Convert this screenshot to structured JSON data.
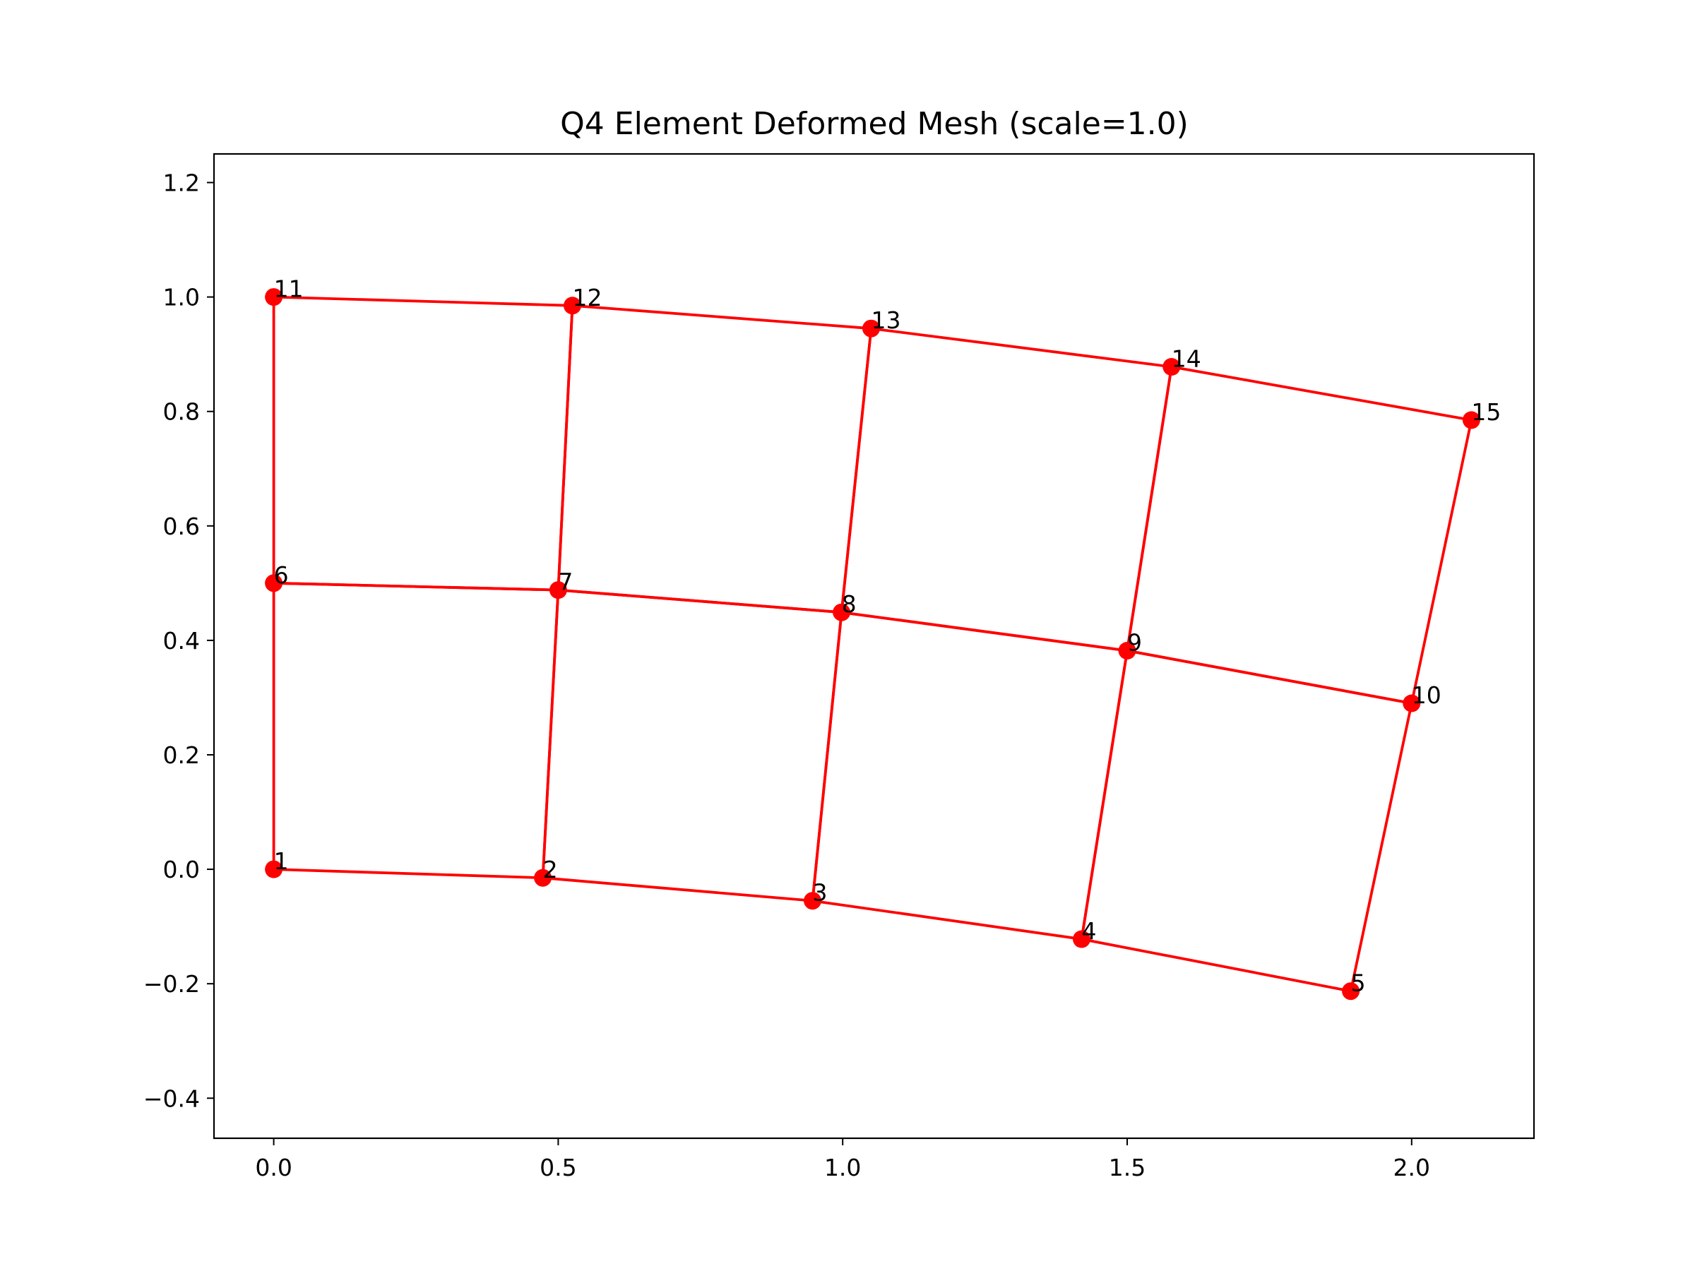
{
  "chart_data": {
    "type": "scatter",
    "title": "Q4 Element Deformed Mesh (scale=1.0)",
    "xlabel": "",
    "ylabel": "",
    "xlim": [
      -0.105,
      2.215
    ],
    "ylim": [
      -0.47,
      1.25
    ],
    "xticks": [
      0.0,
      0.5,
      1.0,
      1.5,
      2.0
    ],
    "yticks": [
      -0.4,
      -0.2,
      0.0,
      0.2,
      0.4,
      0.6,
      0.8,
      1.0,
      1.2
    ],
    "xtick_labels": [
      "0.0",
      "0.5",
      "1.0",
      "1.5",
      "2.0"
    ],
    "ytick_labels": [
      "−0.4",
      "−0.2",
      "0.0",
      "0.2",
      "0.4",
      "0.6",
      "0.8",
      "1.0",
      "1.2"
    ],
    "grid": false,
    "legend": "none",
    "color": "#ff0000",
    "nodes": [
      {
        "id": 1,
        "label": "1",
        "x": 0.0,
        "y": 0.0
      },
      {
        "id": 2,
        "label": "2",
        "x": 0.473,
        "y": -0.015
      },
      {
        "id": 3,
        "label": "3",
        "x": 0.947,
        "y": -0.055
      },
      {
        "id": 4,
        "label": "4",
        "x": 1.42,
        "y": -0.122
      },
      {
        "id": 5,
        "label": "5",
        "x": 1.893,
        "y": -0.213
      },
      {
        "id": 6,
        "label": "6",
        "x": 0.0,
        "y": 0.5
      },
      {
        "id": 7,
        "label": "7",
        "x": 0.5,
        "y": 0.488
      },
      {
        "id": 8,
        "label": "8",
        "x": 0.998,
        "y": 0.449
      },
      {
        "id": 9,
        "label": "9",
        "x": 1.5,
        "y": 0.382
      },
      {
        "id": 10,
        "label": "10",
        "x": 2.0,
        "y": 0.29
      },
      {
        "id": 11,
        "label": "11",
        "x": 0.0,
        "y": 1.0
      },
      {
        "id": 12,
        "label": "12",
        "x": 0.525,
        "y": 0.985
      },
      {
        "id": 13,
        "label": "13",
        "x": 1.05,
        "y": 0.945
      },
      {
        "id": 14,
        "label": "14",
        "x": 1.578,
        "y": 0.878
      },
      {
        "id": 15,
        "label": "15",
        "x": 2.105,
        "y": 0.785
      }
    ],
    "elements": [
      [
        1,
        2,
        7,
        6
      ],
      [
        2,
        3,
        8,
        7
      ],
      [
        3,
        4,
        9,
        8
      ],
      [
        4,
        5,
        10,
        9
      ],
      [
        6,
        7,
        12,
        11
      ],
      [
        7,
        8,
        13,
        12
      ],
      [
        8,
        9,
        14,
        13
      ],
      [
        9,
        10,
        15,
        14
      ]
    ]
  }
}
